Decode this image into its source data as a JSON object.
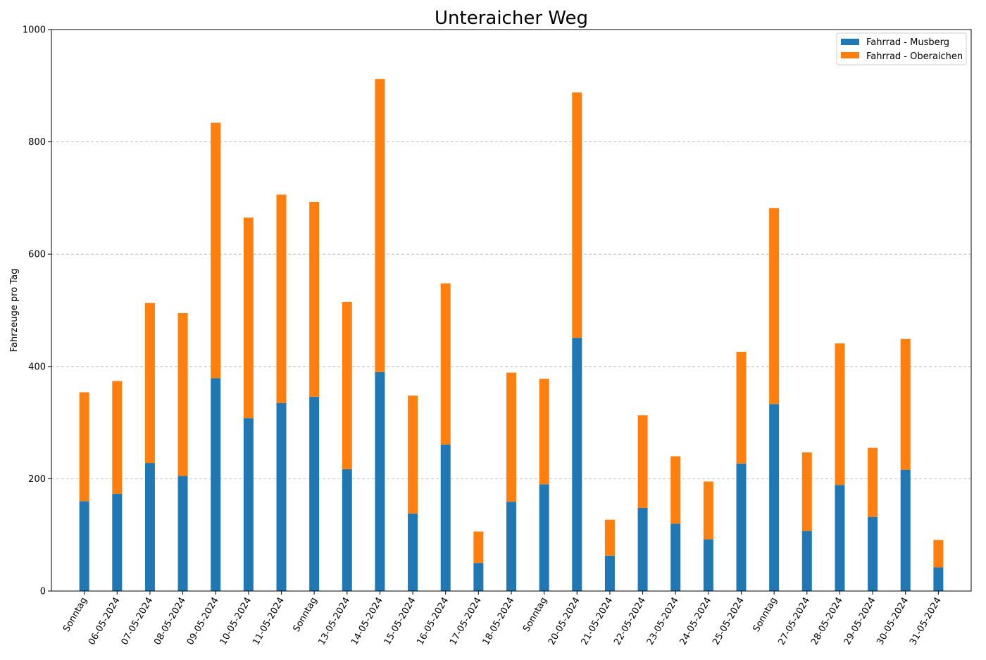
{
  "chart_data": {
    "type": "bar",
    "stacked": true,
    "title": "Unteraicher Weg",
    "xlabel": "",
    "ylabel": "Fahrzeuge pro Tag",
    "ylim": [
      0,
      1000
    ],
    "yticks": [
      0,
      200,
      400,
      600,
      800,
      1000
    ],
    "grid": "y-dashed",
    "legend_position": "top-right",
    "categories": [
      "Sonntag",
      "06-05-2024",
      "07-05-2024",
      "08-05-2024",
      "09-05-2024",
      "10-05-2024",
      "11-05-2024",
      "Sonntag",
      "13-05-2024",
      "14-05-2024",
      "15-05-2024",
      "16-05-2024",
      "17-05-2024",
      "18-05-2024",
      "Sonntag",
      "20-05-2024",
      "21-05-2024",
      "22-05-2024",
      "23-05-2024",
      "24-05-2024",
      "25-05-2024",
      "Sonntag",
      "27-05-2024",
      "28-05-2024",
      "29-05-2024",
      "30-05-2024",
      "31-05-2024"
    ],
    "series": [
      {
        "name": "Fahrrad - Musberg",
        "color": "#1f77b4",
        "values": [
          160,
          173,
          228,
          205,
          379,
          308,
          335,
          346,
          217,
          390,
          138,
          261,
          50,
          159,
          190,
          451,
          63,
          148,
          120,
          92,
          227,
          333,
          107,
          189,
          132,
          216,
          42
        ]
      },
      {
        "name": "Fahrrad - Oberaichen",
        "color": "#ff7f0e",
        "values": [
          194,
          201,
          285,
          290,
          455,
          357,
          371,
          347,
          298,
          522,
          210,
          287,
          56,
          230,
          188,
          437,
          64,
          165,
          120,
          103,
          199,
          349,
          140,
          252,
          123,
          233,
          49
        ]
      }
    ]
  }
}
